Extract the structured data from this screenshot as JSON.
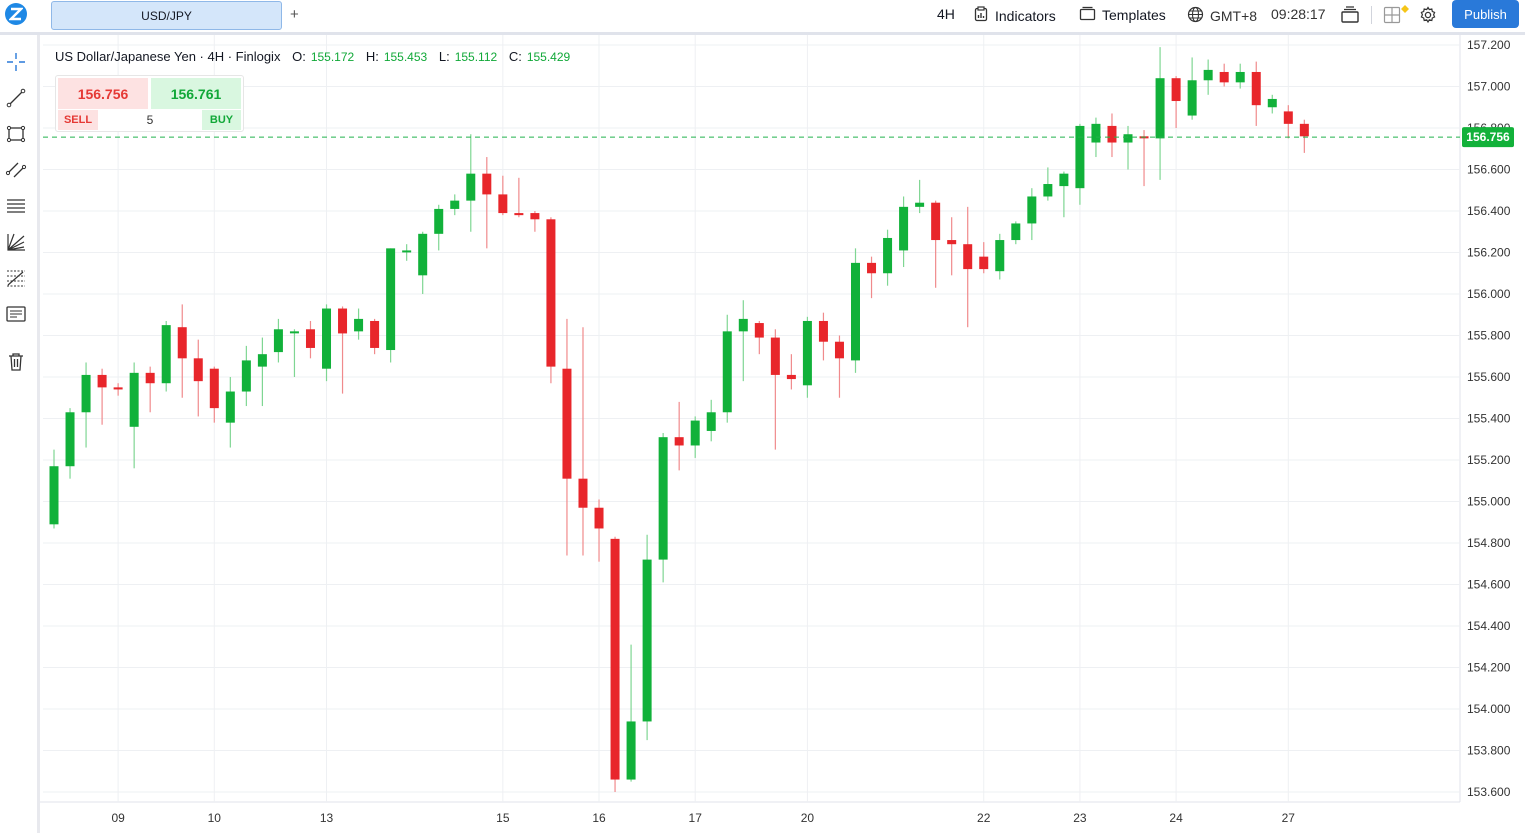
{
  "header": {
    "symbol_tab": "USD/JPY",
    "add_tab": "+",
    "interval": "4H",
    "indicators_label": "Indicators",
    "templates_label": "Templates",
    "timezone": "GMT+8",
    "clock": "09:28:17",
    "publish_label": "Publish"
  },
  "legend": {
    "title": "US Dollar/Japanese Yen · 4H · Finlogix",
    "o_label": "O:",
    "o": "155.172",
    "h_label": "H:",
    "h": "155.453",
    "l_label": "L:",
    "l": "155.112",
    "c_label": "C:",
    "c": "155.429"
  },
  "trade": {
    "sell_price": "156.756",
    "buy_price": "156.761",
    "sell_label": "SELL",
    "buy_label": "BUY",
    "quantity": "5"
  },
  "colors": {
    "up": "#11b13a",
    "down": "#e8262b",
    "accent": "#2979d9",
    "grid": "#eef0f3"
  },
  "chart_data": {
    "type": "candlestick",
    "title": "",
    "ylim": [
      153.56,
      157.23
    ],
    "y_ticks": [
      "157.200",
      "157.000",
      "156.800",
      "156.600",
      "156.400",
      "156.200",
      "156.000",
      "155.800",
      "155.600",
      "155.400",
      "155.200",
      "155.000",
      "154.800",
      "154.600",
      "154.400",
      "154.200",
      "154.000",
      "153.800",
      "153.600"
    ],
    "x_labels": [
      {
        "label": "09",
        "index": 4
      },
      {
        "label": "10",
        "index": 10
      },
      {
        "label": "13",
        "index": 17
      },
      {
        "label": "15",
        "index": 28
      },
      {
        "label": "16",
        "index": 34
      },
      {
        "label": "17",
        "index": 40
      },
      {
        "label": "20",
        "index": 47
      },
      {
        "label": "22",
        "index": 58
      },
      {
        "label": "23",
        "index": 64
      },
      {
        "label": "24",
        "index": 70
      },
      {
        "label": "27",
        "index": 77
      }
    ],
    "current_price": "156.756",
    "current_price_value": 156.756,
    "candles": [
      {
        "o": 154.89,
        "h": 155.25,
        "l": 154.87,
        "c": 155.17
      },
      {
        "o": 155.17,
        "h": 155.45,
        "l": 155.11,
        "c": 155.43
      },
      {
        "o": 155.43,
        "h": 155.67,
        "l": 155.26,
        "c": 155.61
      },
      {
        "o": 155.61,
        "h": 155.64,
        "l": 155.37,
        "c": 155.55
      },
      {
        "o": 155.55,
        "h": 155.57,
        "l": 155.51,
        "c": 155.54
      },
      {
        "o": 155.36,
        "h": 155.67,
        "l": 155.16,
        "c": 155.62
      },
      {
        "o": 155.62,
        "h": 155.65,
        "l": 155.43,
        "c": 155.57
      },
      {
        "o": 155.57,
        "h": 155.87,
        "l": 155.53,
        "c": 155.85
      },
      {
        "o": 155.84,
        "h": 155.95,
        "l": 155.5,
        "c": 155.69
      },
      {
        "o": 155.69,
        "h": 155.78,
        "l": 155.41,
        "c": 155.58
      },
      {
        "o": 155.64,
        "h": 155.65,
        "l": 155.38,
        "c": 155.45
      },
      {
        "o": 155.38,
        "h": 155.6,
        "l": 155.26,
        "c": 155.53
      },
      {
        "o": 155.53,
        "h": 155.75,
        "l": 155.46,
        "c": 155.68
      },
      {
        "o": 155.65,
        "h": 155.79,
        "l": 155.46,
        "c": 155.71
      },
      {
        "o": 155.72,
        "h": 155.88,
        "l": 155.67,
        "c": 155.83
      },
      {
        "o": 155.82,
        "h": 155.83,
        "l": 155.6,
        "c": 155.82
      },
      {
        "o": 155.83,
        "h": 155.87,
        "l": 155.69,
        "c": 155.74
      },
      {
        "o": 155.64,
        "h": 155.95,
        "l": 155.58,
        "c": 155.93
      },
      {
        "o": 155.93,
        "h": 155.94,
        "l": 155.52,
        "c": 155.81
      },
      {
        "o": 155.82,
        "h": 155.93,
        "l": 155.78,
        "c": 155.88
      },
      {
        "o": 155.87,
        "h": 155.88,
        "l": 155.71,
        "c": 155.74
      },
      {
        "o": 155.73,
        "h": 156.22,
        "l": 155.67,
        "c": 156.22
      },
      {
        "o": 156.21,
        "h": 156.24,
        "l": 156.16,
        "c": 156.21
      },
      {
        "o": 156.09,
        "h": 156.3,
        "l": 156.0,
        "c": 156.29
      },
      {
        "o": 156.29,
        "h": 156.43,
        "l": 156.21,
        "c": 156.41
      },
      {
        "o": 156.41,
        "h": 156.48,
        "l": 156.38,
        "c": 156.45
      },
      {
        "o": 156.45,
        "h": 156.77,
        "l": 156.3,
        "c": 156.58
      },
      {
        "o": 156.58,
        "h": 156.66,
        "l": 156.22,
        "c": 156.48
      },
      {
        "o": 156.48,
        "h": 156.57,
        "l": 156.38,
        "c": 156.39
      },
      {
        "o": 156.39,
        "h": 156.56,
        "l": 156.37,
        "c": 156.38
      },
      {
        "o": 156.39,
        "h": 156.4,
        "l": 156.3,
        "c": 156.36
      },
      {
        "o": 156.36,
        "h": 156.37,
        "l": 155.57,
        "c": 155.65
      },
      {
        "o": 155.64,
        "h": 155.88,
        "l": 154.74,
        "c": 155.11
      },
      {
        "o": 155.11,
        "h": 155.84,
        "l": 154.74,
        "c": 154.97
      },
      {
        "o": 154.97,
        "h": 155.01,
        "l": 154.71,
        "c": 154.87
      },
      {
        "o": 154.82,
        "h": 154.83,
        "l": 153.6,
        "c": 153.66
      },
      {
        "o": 153.66,
        "h": 154.31,
        "l": 153.65,
        "c": 153.94
      },
      {
        "o": 153.94,
        "h": 154.84,
        "l": 153.85,
        "c": 154.72
      },
      {
        "o": 154.72,
        "h": 155.33,
        "l": 154.61,
        "c": 155.31
      },
      {
        "o": 155.31,
        "h": 155.48,
        "l": 155.15,
        "c": 155.27
      },
      {
        "o": 155.27,
        "h": 155.41,
        "l": 155.21,
        "c": 155.39
      },
      {
        "o": 155.34,
        "h": 155.49,
        "l": 155.29,
        "c": 155.43
      },
      {
        "o": 155.43,
        "h": 155.9,
        "l": 155.38,
        "c": 155.82
      },
      {
        "o": 155.82,
        "h": 155.97,
        "l": 155.58,
        "c": 155.88
      },
      {
        "o": 155.86,
        "h": 155.87,
        "l": 155.71,
        "c": 155.79
      },
      {
        "o": 155.79,
        "h": 155.83,
        "l": 155.25,
        "c": 155.61
      },
      {
        "o": 155.61,
        "h": 155.71,
        "l": 155.54,
        "c": 155.59
      },
      {
        "o": 155.56,
        "h": 155.89,
        "l": 155.5,
        "c": 155.87
      },
      {
        "o": 155.87,
        "h": 155.91,
        "l": 155.68,
        "c": 155.77
      },
      {
        "o": 155.77,
        "h": 155.8,
        "l": 155.5,
        "c": 155.69
      },
      {
        "o": 155.68,
        "h": 156.22,
        "l": 155.62,
        "c": 156.15
      },
      {
        "o": 156.15,
        "h": 156.18,
        "l": 155.98,
        "c": 156.1
      },
      {
        "o": 156.1,
        "h": 156.31,
        "l": 156.04,
        "c": 156.27
      },
      {
        "o": 156.21,
        "h": 156.47,
        "l": 156.13,
        "c": 156.42
      },
      {
        "o": 156.42,
        "h": 156.55,
        "l": 156.39,
        "c": 156.44
      },
      {
        "o": 156.44,
        "h": 156.45,
        "l": 156.03,
        "c": 156.26
      },
      {
        "o": 156.26,
        "h": 156.37,
        "l": 156.09,
        "c": 156.24
      },
      {
        "o": 156.24,
        "h": 156.42,
        "l": 155.84,
        "c": 156.12
      },
      {
        "o": 156.18,
        "h": 156.25,
        "l": 156.1,
        "c": 156.12
      },
      {
        "o": 156.11,
        "h": 156.29,
        "l": 156.07,
        "c": 156.26
      },
      {
        "o": 156.26,
        "h": 156.35,
        "l": 156.24,
        "c": 156.34
      },
      {
        "o": 156.34,
        "h": 156.51,
        "l": 156.26,
        "c": 156.47
      },
      {
        "o": 156.47,
        "h": 156.61,
        "l": 156.45,
        "c": 156.53
      },
      {
        "o": 156.52,
        "h": 156.59,
        "l": 156.37,
        "c": 156.58
      },
      {
        "o": 156.51,
        "h": 156.82,
        "l": 156.43,
        "c": 156.81
      },
      {
        "o": 156.73,
        "h": 156.85,
        "l": 156.66,
        "c": 156.82
      },
      {
        "o": 156.81,
        "h": 156.87,
        "l": 156.66,
        "c": 156.73
      },
      {
        "o": 156.73,
        "h": 156.81,
        "l": 156.6,
        "c": 156.77
      },
      {
        "o": 156.76,
        "h": 156.79,
        "l": 156.52,
        "c": 156.75
      },
      {
        "o": 156.75,
        "h": 157.19,
        "l": 156.55,
        "c": 157.04
      },
      {
        "o": 157.04,
        "h": 157.05,
        "l": 156.8,
        "c": 156.93
      },
      {
        "o": 156.86,
        "h": 157.14,
        "l": 156.84,
        "c": 157.03
      },
      {
        "o": 157.03,
        "h": 157.13,
        "l": 156.96,
        "c": 157.08
      },
      {
        "o": 157.07,
        "h": 157.11,
        "l": 157.0,
        "c": 157.02
      },
      {
        "o": 157.02,
        "h": 157.11,
        "l": 156.99,
        "c": 157.07
      },
      {
        "o": 157.07,
        "h": 157.12,
        "l": 156.81,
        "c": 156.91
      },
      {
        "o": 156.9,
        "h": 156.96,
        "l": 156.87,
        "c": 156.94
      },
      {
        "o": 156.88,
        "h": 156.91,
        "l": 156.75,
        "c": 156.82
      },
      {
        "o": 156.82,
        "h": 156.84,
        "l": 156.68,
        "c": 156.76
      }
    ]
  }
}
